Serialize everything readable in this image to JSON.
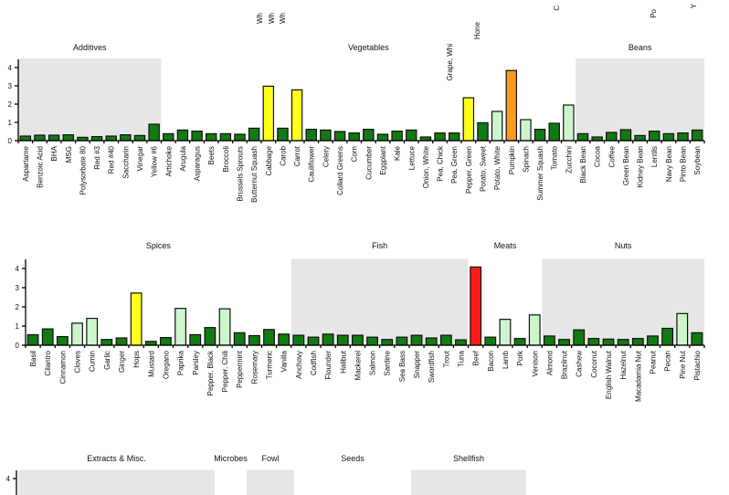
{
  "colors": {
    "dark_green": "#127a12",
    "light_green": "#ccf5cc",
    "yellow": "#ffff1a",
    "orange": "#ff9a1a",
    "red": "#ff1a1a",
    "shade": "#e6e6e6"
  },
  "top_clipped_labels": [
    "Wh",
    "Wh",
    "Wh",
    "Grape, Whi",
    "Hone",
    "C",
    "Po",
    "Y"
  ],
  "chart_data": [
    {
      "type": "bar",
      "title": "",
      "xlabel": "",
      "ylabel": "",
      "ylim": [
        0,
        4.5
      ],
      "yticks": [
        0,
        1,
        2,
        3,
        4
      ],
      "grid": false,
      "groups": [
        {
          "name": "Additives",
          "shaded": true,
          "categories": [
            "Aspartame",
            "Benzoic Acid",
            "BHA",
            "MSG",
            "Polysorbate 80",
            "Red #3",
            "Red #40",
            "Saccharin",
            "Vinegar",
            "Yellow #6"
          ],
          "values": [
            0.25,
            0.3,
            0.3,
            0.32,
            0.18,
            0.22,
            0.25,
            0.32,
            0.28,
            0.9
          ],
          "colors": [
            "dark_green",
            "dark_green",
            "dark_green",
            "dark_green",
            "dark_green",
            "dark_green",
            "dark_green",
            "dark_green",
            "dark_green",
            "dark_green"
          ]
        },
        {
          "name": "Vegetables",
          "shaded": false,
          "categories": [
            "Artichoke",
            "Arugula",
            "Asparagus",
            "Beets",
            "Broccoli",
            "Brussels Sprouts",
            "Butternut Squash",
            "Cabbage",
            "Carob",
            "Carrot",
            "Cauliflower",
            "Celery",
            "Collard Greens",
            "Corn",
            "Cucumber",
            "Eggplant",
            "Kale",
            "Lettuce",
            "Onion, White",
            "Pea, Chick",
            "Pea, Green",
            "Pepper, Green",
            "Potato, Sweet",
            "Potato, White",
            "Pumpkin",
            "Spinach",
            "Summer Squash",
            "Tomato",
            "Zucchini"
          ],
          "values": [
            0.38,
            0.58,
            0.52,
            0.38,
            0.38,
            0.35,
            0.68,
            2.98,
            0.68,
            2.78,
            0.62,
            0.58,
            0.5,
            0.42,
            0.62,
            0.35,
            0.52,
            0.58,
            0.2,
            0.42,
            0.42,
            2.35,
            0.98,
            1.6,
            3.84,
            1.15,
            0.62,
            0.95,
            1.95
          ],
          "colors": [
            "dark_green",
            "dark_green",
            "dark_green",
            "dark_green",
            "dark_green",
            "dark_green",
            "dark_green",
            "yellow",
            "dark_green",
            "yellow",
            "dark_green",
            "dark_green",
            "dark_green",
            "dark_green",
            "dark_green",
            "dark_green",
            "dark_green",
            "dark_green",
            "dark_green",
            "dark_green",
            "dark_green",
            "yellow",
            "dark_green",
            "light_green",
            "orange",
            "light_green",
            "dark_green",
            "dark_green",
            "light_green"
          ]
        },
        {
          "name": "Beans",
          "shaded": true,
          "categories": [
            "Black Bean",
            "Cocoa",
            "Coffee",
            "Green Bean",
            "Kidney Bean",
            "Lentils",
            "Navy Bean",
            "Pinto Bean",
            "Soybean"
          ],
          "values": [
            0.38,
            0.2,
            0.45,
            0.6,
            0.28,
            0.52,
            0.38,
            0.42,
            0.58
          ],
          "colors": [
            "dark_green",
            "dark_green",
            "dark_green",
            "dark_green",
            "dark_green",
            "dark_green",
            "dark_green",
            "dark_green",
            "dark_green"
          ]
        }
      ]
    },
    {
      "type": "bar",
      "title": "",
      "xlabel": "",
      "ylabel": "",
      "ylim": [
        0,
        4.5
      ],
      "yticks": [
        0,
        1,
        2,
        3,
        4
      ],
      "grid": false,
      "groups": [
        {
          "name": "Spices",
          "shaded": false,
          "categories": [
            "Basil",
            "Cilantro",
            "Cinnamon",
            "Cloves",
            "Cumin",
            "Garlic",
            "Ginger",
            "Hops",
            "Mustard",
            "Oregano",
            "Paprika",
            "Parsley",
            "Pepper, Black",
            "Pepper, Chili",
            "Peppermint",
            "Rosemary",
            "Turmeric",
            "Vanilla"
          ],
          "values": [
            0.55,
            0.85,
            0.45,
            1.15,
            1.4,
            0.3,
            0.38,
            2.72,
            0.2,
            0.4,
            1.92,
            0.55,
            0.92,
            1.9,
            0.65,
            0.5,
            0.82,
            0.58
          ],
          "colors": [
            "dark_green",
            "dark_green",
            "dark_green",
            "light_green",
            "light_green",
            "dark_green",
            "dark_green",
            "yellow",
            "dark_green",
            "dark_green",
            "light_green",
            "dark_green",
            "dark_green",
            "light_green",
            "dark_green",
            "dark_green",
            "dark_green",
            "dark_green"
          ]
        },
        {
          "name": "Fish",
          "shaded": true,
          "categories": [
            "Anchovy",
            "Codfish",
            "Flounder",
            "Halibut",
            "Mackerel",
            "Salmon",
            "Sardine",
            "Sea Bass",
            "Snapper",
            "Swordfish",
            "Trout",
            "Tuna"
          ],
          "values": [
            0.52,
            0.42,
            0.58,
            0.52,
            0.52,
            0.42,
            0.3,
            0.42,
            0.52,
            0.38,
            0.52,
            0.28
          ],
          "colors": [
            "dark_green",
            "dark_green",
            "dark_green",
            "dark_green",
            "dark_green",
            "dark_green",
            "dark_green",
            "dark_green",
            "dark_green",
            "dark_green",
            "dark_green",
            "dark_green"
          ]
        },
        {
          "name": "Meats",
          "shaded": false,
          "categories": [
            "Beef",
            "Bacon",
            "Lamb",
            "Pork",
            "Venison"
          ],
          "values": [
            4.08,
            0.42,
            1.35,
            0.35,
            1.58
          ],
          "colors": [
            "red",
            "dark_green",
            "light_green",
            "dark_green",
            "light_green"
          ]
        },
        {
          "name": "Nuts",
          "shaded": true,
          "categories": [
            "Almond",
            "Brazilnut",
            "Cashew",
            "Coconut",
            "English Walnut",
            "Hazelnut",
            "Macadamia Nut",
            "Peanut",
            "Pecan",
            "Pine Nut",
            "Pistachio"
          ],
          "values": [
            0.48,
            0.3,
            0.8,
            0.35,
            0.32,
            0.3,
            0.35,
            0.48,
            0.88,
            1.65,
            0.65
          ],
          "colors": [
            "dark_green",
            "dark_green",
            "dark_green",
            "dark_green",
            "dark_green",
            "dark_green",
            "dark_green",
            "dark_green",
            "dark_green",
            "light_green",
            "dark_green"
          ]
        }
      ]
    },
    {
      "type": "bar",
      "title": "",
      "ylim": [
        0,
        4.5
      ],
      "yticks": [
        4
      ],
      "grid": false,
      "groups": [
        {
          "name": "Extracts & Misc.",
          "shaded": true,
          "categories": [],
          "values": [],
          "colors": []
        },
        {
          "name": "Microbes",
          "shaded": false,
          "categories": [],
          "values": [],
          "colors": []
        },
        {
          "name": "Fowl",
          "shaded": true,
          "categories": [],
          "values": [],
          "colors": []
        },
        {
          "name": "Seeds",
          "shaded": false,
          "categories": [],
          "values": [],
          "colors": []
        },
        {
          "name": "Shellfish",
          "shaded": true,
          "categories": [],
          "values": [],
          "colors": []
        }
      ]
    }
  ]
}
